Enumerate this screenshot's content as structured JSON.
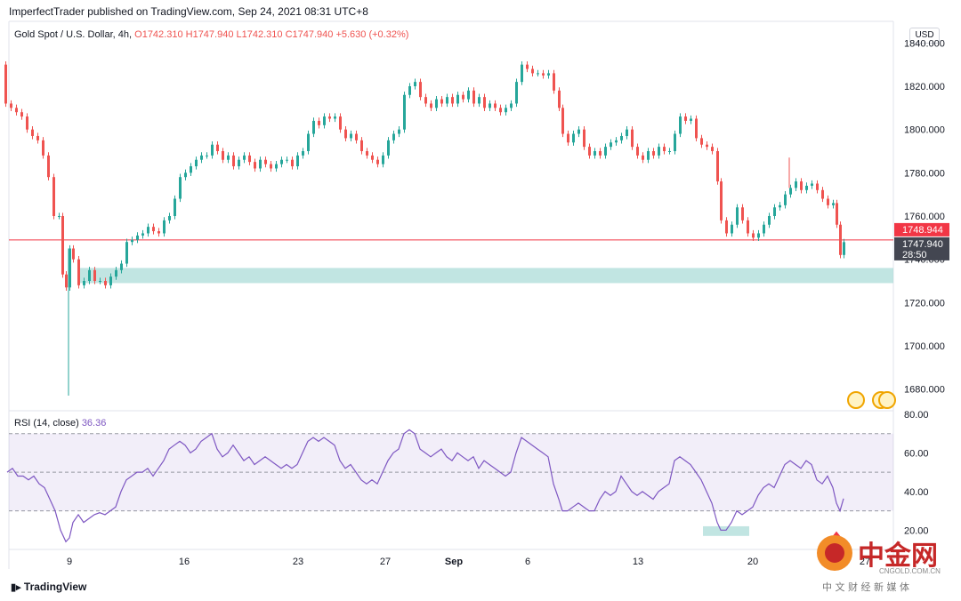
{
  "header": {
    "publisher_line": "ImperfectTrader published on TradingView.com, Sep 24, 2021 08:31 UTC+8",
    "symbol": "Gold Spot / U.S. Dollar, 4h,",
    "ohlc": "O1742.310 H1747.940 L1742.310 C1747.940",
    "change": "+5.630 (+0.32%)",
    "currency": "USD"
  },
  "rsi_panel": {
    "label": "RSI (14, close)",
    "value": "36.36"
  },
  "price_tags": {
    "line_price": "1748.944",
    "last_price": "1747.940",
    "countdown": "28:50"
  },
  "branding": {
    "tradingview": "TradingView",
    "watermark_cn": "中金网",
    "watermark_url": "CNGOLD.COM.CN",
    "watermark_sub": "中 文 财 经 新 媒 体"
  },
  "colors": {
    "up": "#26a69a",
    "down": "#ef5350",
    "rsi": "#7e57c2",
    "band": "#b2dfdb",
    "hline": "#f23645"
  },
  "chart_data": [
    {
      "type": "candlestick",
      "xlabels": [
        "9",
        "16",
        "23",
        "27",
        "Sep",
        "6",
        "13",
        "20",
        "27"
      ],
      "ylim": [
        1670,
        1850
      ],
      "yticks": [
        "1680.000",
        "1700.000",
        "1720.000",
        "1740.000",
        "1760.000",
        "1780.000",
        "1800.000",
        "1820.000",
        "1840.000"
      ],
      "horizontal_line": 1748.944,
      "support_zone": [
        1729,
        1736
      ],
      "close_path": [
        [
          0,
          1830
        ],
        [
          6,
          1812
        ],
        [
          12,
          1810
        ],
        [
          18,
          1808
        ],
        [
          24,
          1806
        ],
        [
          30,
          1800
        ],
        [
          36,
          1797
        ],
        [
          42,
          1795
        ],
        [
          48,
          1788
        ],
        [
          54,
          1778
        ],
        [
          60,
          1760
        ],
        [
          66,
          1760
        ],
        [
          70,
          1733
        ],
        [
          74,
          1727
        ],
        [
          78,
          1745
        ],
        [
          82,
          1740
        ],
        [
          88,
          1728
        ],
        [
          94,
          1730
        ],
        [
          100,
          1735
        ],
        [
          106,
          1730
        ],
        [
          112,
          1730
        ],
        [
          118,
          1728
        ],
        [
          124,
          1732
        ],
        [
          130,
          1735
        ],
        [
          136,
          1738
        ],
        [
          142,
          1748
        ],
        [
          148,
          1749
        ],
        [
          154,
          1751
        ],
        [
          160,
          1752
        ],
        [
          166,
          1755
        ],
        [
          172,
          1753
        ],
        [
          178,
          1752
        ],
        [
          184,
          1758
        ],
        [
          190,
          1760
        ],
        [
          196,
          1768
        ],
        [
          202,
          1778
        ],
        [
          208,
          1780
        ],
        [
          214,
          1783
        ],
        [
          220,
          1786
        ],
        [
          226,
          1788
        ],
        [
          232,
          1788
        ],
        [
          238,
          1793
        ],
        [
          244,
          1790
        ],
        [
          250,
          1786
        ],
        [
          256,
          1788
        ],
        [
          262,
          1783
        ],
        [
          268,
          1786
        ],
        [
          274,
          1788
        ],
        [
          280,
          1785
        ],
        [
          286,
          1782
        ],
        [
          292,
          1786
        ],
        [
          298,
          1784
        ],
        [
          304,
          1782
        ],
        [
          310,
          1784
        ],
        [
          316,
          1786
        ],
        [
          322,
          1786
        ],
        [
          328,
          1783
        ],
        [
          334,
          1788
        ],
        [
          340,
          1790
        ],
        [
          346,
          1798
        ],
        [
          352,
          1804
        ],
        [
          358,
          1802
        ],
        [
          364,
          1806
        ],
        [
          370,
          1805
        ],
        [
          376,
          1806
        ],
        [
          382,
          1800
        ],
        [
          388,
          1796
        ],
        [
          394,
          1798
        ],
        [
          400,
          1795
        ],
        [
          406,
          1790
        ],
        [
          412,
          1788
        ],
        [
          418,
          1786
        ],
        [
          424,
          1784
        ],
        [
          430,
          1788
        ],
        [
          436,
          1795
        ],
        [
          442,
          1798
        ],
        [
          448,
          1800
        ],
        [
          454,
          1816
        ],
        [
          460,
          1820
        ],
        [
          466,
          1822
        ],
        [
          472,
          1815
        ],
        [
          478,
          1812
        ],
        [
          484,
          1810
        ],
        [
          490,
          1814
        ],
        [
          496,
          1812
        ],
        [
          502,
          1815
        ],
        [
          508,
          1812
        ],
        [
          514,
          1816
        ],
        [
          520,
          1814
        ],
        [
          526,
          1818
        ],
        [
          532,
          1812
        ],
        [
          538,
          1815
        ],
        [
          544,
          1810
        ],
        [
          550,
          1812
        ],
        [
          556,
          1810
        ],
        [
          562,
          1808
        ],
        [
          568,
          1810
        ],
        [
          574,
          1812
        ],
        [
          580,
          1822
        ],
        [
          586,
          1830
        ],
        [
          592,
          1828
        ],
        [
          598,
          1826
        ],
        [
          604,
          1826
        ],
        [
          610,
          1825
        ],
        [
          616,
          1826
        ],
        [
          622,
          1818
        ],
        [
          628,
          1810
        ],
        [
          632,
          1798
        ],
        [
          638,
          1794
        ],
        [
          644,
          1798
        ],
        [
          650,
          1800
        ],
        [
          656,
          1792
        ],
        [
          662,
          1788
        ],
        [
          668,
          1790
        ],
        [
          674,
          1788
        ],
        [
          680,
          1792
        ],
        [
          686,
          1794
        ],
        [
          692,
          1795
        ],
        [
          698,
          1797
        ],
        [
          704,
          1800
        ],
        [
          710,
          1792
        ],
        [
          716,
          1788
        ],
        [
          722,
          1786
        ],
        [
          728,
          1790
        ],
        [
          734,
          1788
        ],
        [
          740,
          1792
        ],
        [
          746,
          1790
        ],
        [
          752,
          1790
        ],
        [
          758,
          1798
        ],
        [
          764,
          1806
        ],
        [
          770,
          1804
        ],
        [
          776,
          1805
        ],
        [
          782,
          1796
        ],
        [
          788,
          1793
        ],
        [
          794,
          1792
        ],
        [
          800,
          1790
        ],
        [
          806,
          1776
        ],
        [
          810,
          1758
        ],
        [
          816,
          1752
        ],
        [
          822,
          1756
        ],
        [
          828,
          1764
        ],
        [
          834,
          1758
        ],
        [
          840,
          1752
        ],
        [
          846,
          1750
        ],
        [
          852,
          1752
        ],
        [
          858,
          1756
        ],
        [
          864,
          1760
        ],
        [
          870,
          1764
        ],
        [
          876,
          1765
        ],
        [
          882,
          1770
        ],
        [
          888,
          1773
        ],
        [
          894,
          1776
        ],
        [
          900,
          1772
        ],
        [
          906,
          1774
        ],
        [
          912,
          1775
        ],
        [
          918,
          1772
        ],
        [
          924,
          1768
        ],
        [
          930,
          1765
        ],
        [
          936,
          1766
        ],
        [
          940,
          1756
        ],
        [
          944,
          1742
        ],
        [
          948,
          1747.94
        ]
      ],
      "wick_spikes": [
        [
          77,
          1677
        ],
        [
          887,
          1787
        ]
      ]
    },
    {
      "type": "line",
      "name": "RSI (14, close)",
      "ylim": [
        10,
        80
      ],
      "yticks": [
        "20.00",
        "40.00",
        "60.00",
        "80.00"
      ],
      "band": [
        30,
        70
      ],
      "midline": 50,
      "marker_zone": [
        17,
        22
      ],
      "points": [
        [
          8,
          50
        ],
        [
          14,
          52
        ],
        [
          20,
          48
        ],
        [
          26,
          48
        ],
        [
          32,
          46
        ],
        [
          38,
          48
        ],
        [
          44,
          44
        ],
        [
          50,
          42
        ],
        [
          56,
          36
        ],
        [
          62,
          30
        ],
        [
          68,
          20
        ],
        [
          74,
          14
        ],
        [
          78,
          16
        ],
        [
          82,
          24
        ],
        [
          88,
          28
        ],
        [
          94,
          24
        ],
        [
          100,
          26
        ],
        [
          106,
          28
        ],
        [
          112,
          29
        ],
        [
          118,
          28
        ],
        [
          124,
          30
        ],
        [
          130,
          32
        ],
        [
          136,
          40
        ],
        [
          142,
          46
        ],
        [
          148,
          48
        ],
        [
          154,
          50
        ],
        [
          160,
          50
        ],
        [
          166,
          52
        ],
        [
          172,
          48
        ],
        [
          178,
          52
        ],
        [
          184,
          56
        ],
        [
          190,
          62
        ],
        [
          196,
          64
        ],
        [
          202,
          66
        ],
        [
          208,
          64
        ],
        [
          214,
          60
        ],
        [
          220,
          62
        ],
        [
          226,
          66
        ],
        [
          232,
          68
        ],
        [
          238,
          70
        ],
        [
          244,
          62
        ],
        [
          250,
          58
        ],
        [
          256,
          60
        ],
        [
          262,
          64
        ],
        [
          268,
          60
        ],
        [
          274,
          56
        ],
        [
          280,
          58
        ],
        [
          286,
          54
        ],
        [
          292,
          56
        ],
        [
          298,
          58
        ],
        [
          304,
          56
        ],
        [
          310,
          54
        ],
        [
          316,
          52
        ],
        [
          322,
          54
        ],
        [
          328,
          52
        ],
        [
          334,
          54
        ],
        [
          340,
          60
        ],
        [
          346,
          66
        ],
        [
          352,
          68
        ],
        [
          358,
          66
        ],
        [
          364,
          68
        ],
        [
          370,
          66
        ],
        [
          376,
          64
        ],
        [
          382,
          56
        ],
        [
          388,
          52
        ],
        [
          394,
          54
        ],
        [
          400,
          50
        ],
        [
          406,
          46
        ],
        [
          412,
          44
        ],
        [
          418,
          46
        ],
        [
          424,
          44
        ],
        [
          430,
          50
        ],
        [
          436,
          56
        ],
        [
          442,
          60
        ],
        [
          448,
          62
        ],
        [
          454,
          70
        ],
        [
          460,
          72
        ],
        [
          466,
          70
        ],
        [
          472,
          62
        ],
        [
          478,
          60
        ],
        [
          484,
          58
        ],
        [
          490,
          60
        ],
        [
          496,
          62
        ],
        [
          502,
          58
        ],
        [
          508,
          56
        ],
        [
          514,
          60
        ],
        [
          520,
          58
        ],
        [
          526,
          56
        ],
        [
          532,
          58
        ],
        [
          538,
          52
        ],
        [
          544,
          56
        ],
        [
          550,
          54
        ],
        [
          556,
          52
        ],
        [
          562,
          50
        ],
        [
          568,
          48
        ],
        [
          574,
          50
        ],
        [
          580,
          60
        ],
        [
          586,
          68
        ],
        [
          592,
          66
        ],
        [
          598,
          64
        ],
        [
          604,
          62
        ],
        [
          610,
          60
        ],
        [
          616,
          58
        ],
        [
          622,
          44
        ],
        [
          628,
          36
        ],
        [
          632,
          30
        ],
        [
          638,
          30
        ],
        [
          644,
          32
        ],
        [
          650,
          34
        ],
        [
          656,
          32
        ],
        [
          662,
          30
        ],
        [
          668,
          30
        ],
        [
          674,
          36
        ],
        [
          680,
          40
        ],
        [
          686,
          38
        ],
        [
          692,
          40
        ],
        [
          698,
          48
        ],
        [
          704,
          44
        ],
        [
          710,
          40
        ],
        [
          716,
          38
        ],
        [
          722,
          40
        ],
        [
          728,
          38
        ],
        [
          734,
          36
        ],
        [
          740,
          40
        ],
        [
          746,
          42
        ],
        [
          752,
          44
        ],
        [
          758,
          56
        ],
        [
          764,
          58
        ],
        [
          770,
          56
        ],
        [
          776,
          54
        ],
        [
          782,
          50
        ],
        [
          788,
          46
        ],
        [
          794,
          40
        ],
        [
          800,
          34
        ],
        [
          806,
          24
        ],
        [
          810,
          20
        ],
        [
          816,
          20
        ],
        [
          822,
          24
        ],
        [
          828,
          30
        ],
        [
          834,
          28
        ],
        [
          840,
          30
        ],
        [
          846,
          32
        ],
        [
          852,
          38
        ],
        [
          858,
          42
        ],
        [
          864,
          44
        ],
        [
          870,
          42
        ],
        [
          876,
          48
        ],
        [
          882,
          54
        ],
        [
          888,
          56
        ],
        [
          894,
          54
        ],
        [
          900,
          52
        ],
        [
          906,
          56
        ],
        [
          912,
          54
        ],
        [
          918,
          46
        ],
        [
          924,
          44
        ],
        [
          930,
          48
        ],
        [
          936,
          42
        ],
        [
          940,
          34
        ],
        [
          944,
          30
        ],
        [
          948,
          36.36
        ]
      ]
    }
  ]
}
